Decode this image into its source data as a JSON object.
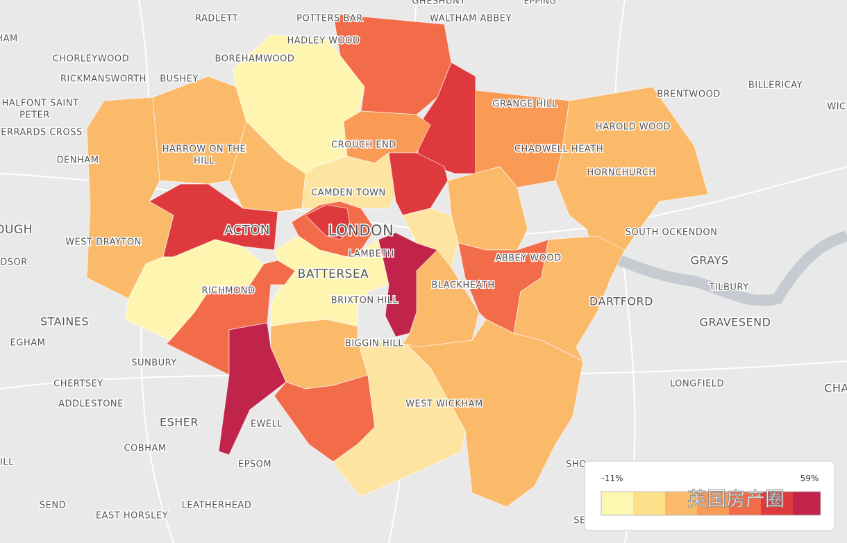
{
  "places": [
    "GHESHUNT",
    "EPPING",
    "RADLETT",
    "POTTERS BAR",
    "WALTHAM ABBEY",
    "HADLEY WOOD",
    "HAM",
    "CHORLEYWOOD",
    "BOREHAMWOOD",
    "RICKMANSWORTH",
    "BUSHEY",
    "GRANGE HILL",
    "BRENTWOOD",
    "BILLERICAY",
    "WIC",
    "HALFONT SAINT",
    "PETER",
    "HAROLD WOOD",
    "ERRARDS CROSS",
    "CROUCH END",
    "HARROW ON THE",
    "HILL",
    "CHADWELL HEATH",
    "DENHAM",
    "HORNCHURCH",
    "CAMDEN TOWN",
    "OUGH",
    "ACTON",
    "LONDON",
    "SOUTH OCKENDON",
    "WEST DRAYTON",
    "LAMBETH",
    "ABBEY WOOD",
    "DSOR",
    "GRAYS",
    "BATTERSEA",
    "BLACKHEATH",
    "TILBURY",
    "RICHMOND",
    "BRIXTON HILL",
    "DARTFORD",
    "STAINES",
    "GRAVESEND",
    "EGHAM",
    "BIGGIN HILL",
    "SUNBURY",
    "CHERTSEY",
    "LONGFIELD",
    "CHA",
    "ADDLESTONE",
    "WEST WICKHAM",
    "ESHER",
    "EWELL",
    "COBHAM",
    "ILL",
    "EPSOM",
    "SHO",
    "SEND",
    "LEATHERHEAD",
    "EAST HORSLEY",
    "SE"
  ],
  "legend": {
    "min": "-11%",
    "max": "59%"
  },
  "watermark": "英国房产圈"
}
